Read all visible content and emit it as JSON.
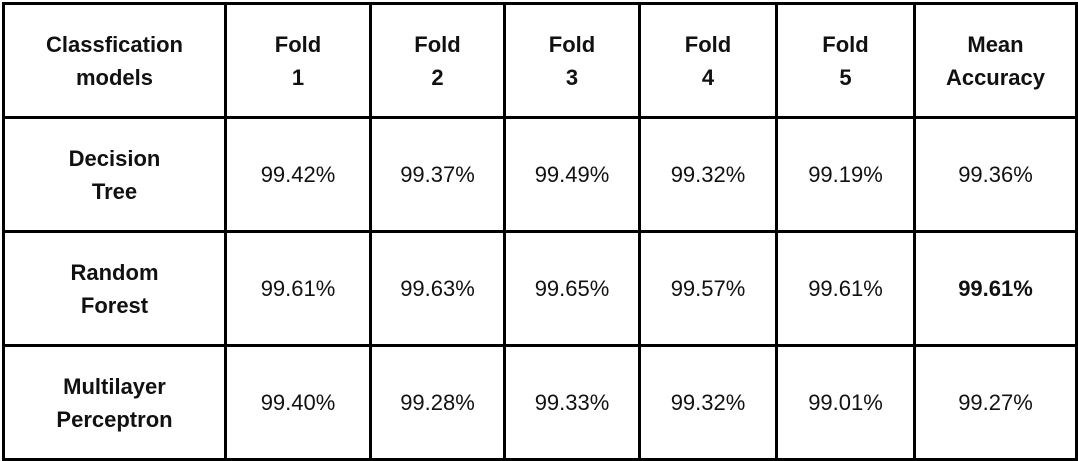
{
  "table": {
    "headers": [
      [
        "Classfication",
        "models"
      ],
      [
        "Fold",
        "1"
      ],
      [
        "Fold",
        "2"
      ],
      [
        "Fold",
        "3"
      ],
      [
        "Fold",
        "4"
      ],
      [
        "Fold",
        "5"
      ],
      [
        "Mean",
        "Accuracy"
      ]
    ],
    "rows": [
      {
        "model": [
          "Decision",
          "Tree"
        ],
        "values": [
          "99.42%",
          "99.37%",
          "99.49%",
          "99.32%",
          "99.19%",
          "99.36%"
        ],
        "best_index": -1
      },
      {
        "model": [
          "Random",
          "Forest"
        ],
        "values": [
          "99.61%",
          "99.63%",
          "99.65%",
          "99.57%",
          "99.61%",
          "99.61%"
        ],
        "best_index": 5
      },
      {
        "model": [
          "Multilayer",
          "Perceptron"
        ],
        "values": [
          "99.40%",
          "99.28%",
          "99.33%",
          "99.32%",
          "99.01%",
          "99.27%"
        ],
        "best_index": -1
      }
    ]
  }
}
